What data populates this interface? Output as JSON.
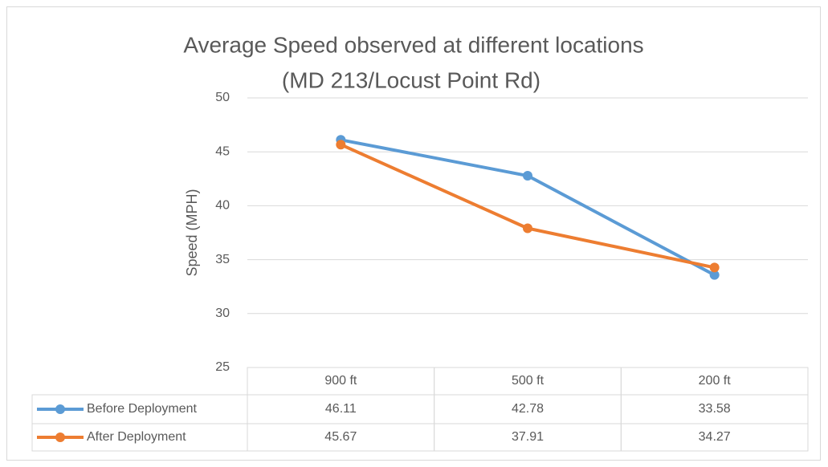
{
  "chart_data": {
    "type": "line",
    "title": "Average Speed observed at different locations",
    "subtitle": "(MD 213/Locust Point Rd)",
    "y_label": "Speed (MPH)",
    "categories": [
      "900 ft",
      "500 ft",
      "200 ft"
    ],
    "series": [
      {
        "name": "Before Deployment",
        "color": "#5b9bd5",
        "values": [
          46.11,
          42.78,
          33.58
        ]
      },
      {
        "name": "After Deployment",
        "color": "#ed7d31",
        "values": [
          45.67,
          37.91,
          34.27
        ]
      }
    ],
    "ylim": [
      25,
      50
    ],
    "yticks": [
      25,
      30,
      35,
      40,
      45,
      50
    ],
    "grid": true,
    "data_table": true
  }
}
